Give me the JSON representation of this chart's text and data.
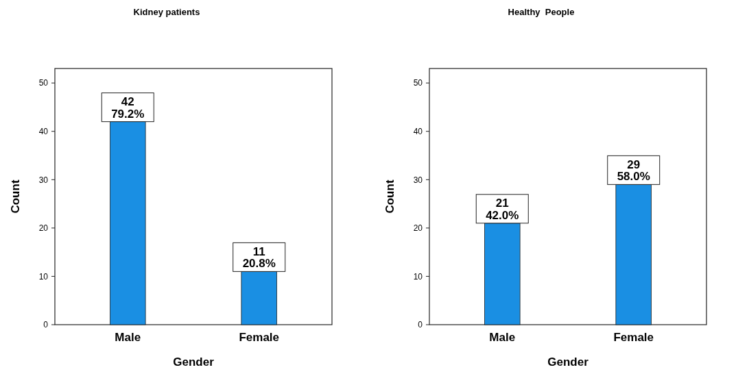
{
  "chart_data": [
    {
      "type": "bar",
      "title": "Kidney patients",
      "xlabel": "Gender",
      "ylabel": "Count",
      "categories": [
        "Male",
        "Female"
      ],
      "values": [
        42,
        11
      ],
      "value_labels": [
        "42\n79.2%",
        "11\n20.8%"
      ],
      "color": "#1a8fe3",
      "ylim": [
        0,
        53
      ],
      "yticks": [
        0,
        10,
        20,
        30,
        40,
        50
      ]
    },
    {
      "type": "bar",
      "title": "Healthy  People",
      "xlabel": "Gender",
      "ylabel": "Count",
      "categories": [
        "Male",
        "Female"
      ],
      "values": [
        21,
        29
      ],
      "value_labels": [
        "21\n42.0%",
        "29\n58.0%"
      ],
      "color": "#1a8fe3",
      "ylim": [
        0,
        53
      ],
      "yticks": [
        0,
        10,
        20,
        30,
        40,
        50
      ]
    }
  ]
}
